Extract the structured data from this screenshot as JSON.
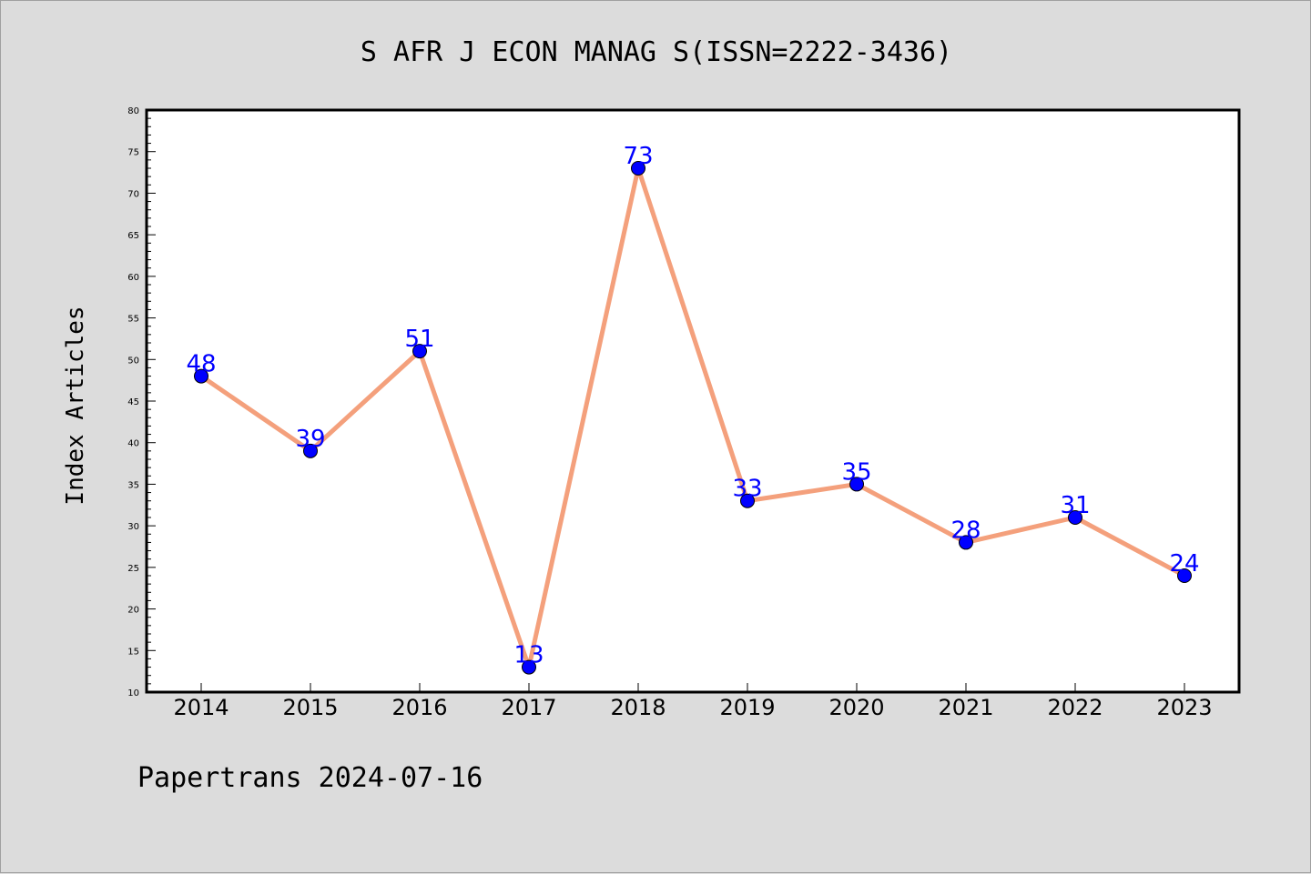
{
  "chart_data": {
    "type": "line",
    "title": "S AFR J ECON MANAG S(ISSN=2222-3436)",
    "xlabel": "",
    "ylabel": "Index Articles",
    "categories": [
      "2014",
      "2015",
      "2016",
      "2017",
      "2018",
      "2019",
      "2020",
      "2021",
      "2022",
      "2023"
    ],
    "series": [
      {
        "values": [
          48,
          39,
          51,
          13,
          73,
          33,
          35,
          28,
          31,
          24
        ]
      }
    ],
    "ylim": [
      10,
      80
    ],
    "yticks": [
      "10",
      "15",
      "20",
      "25",
      "30",
      "35",
      "40",
      "45",
      "50",
      "55",
      "60",
      "65",
      "70",
      "75",
      "80"
    ],
    "grid": false,
    "legend": "none",
    "data_labels": true,
    "colors": {
      "line": "#f4a07c",
      "marker": "#0000ff",
      "label": "#0000ff",
      "background": "#dcdcdc",
      "plot_area": "#ffffff"
    }
  },
  "footer": "Papertrans 2024-07-16"
}
